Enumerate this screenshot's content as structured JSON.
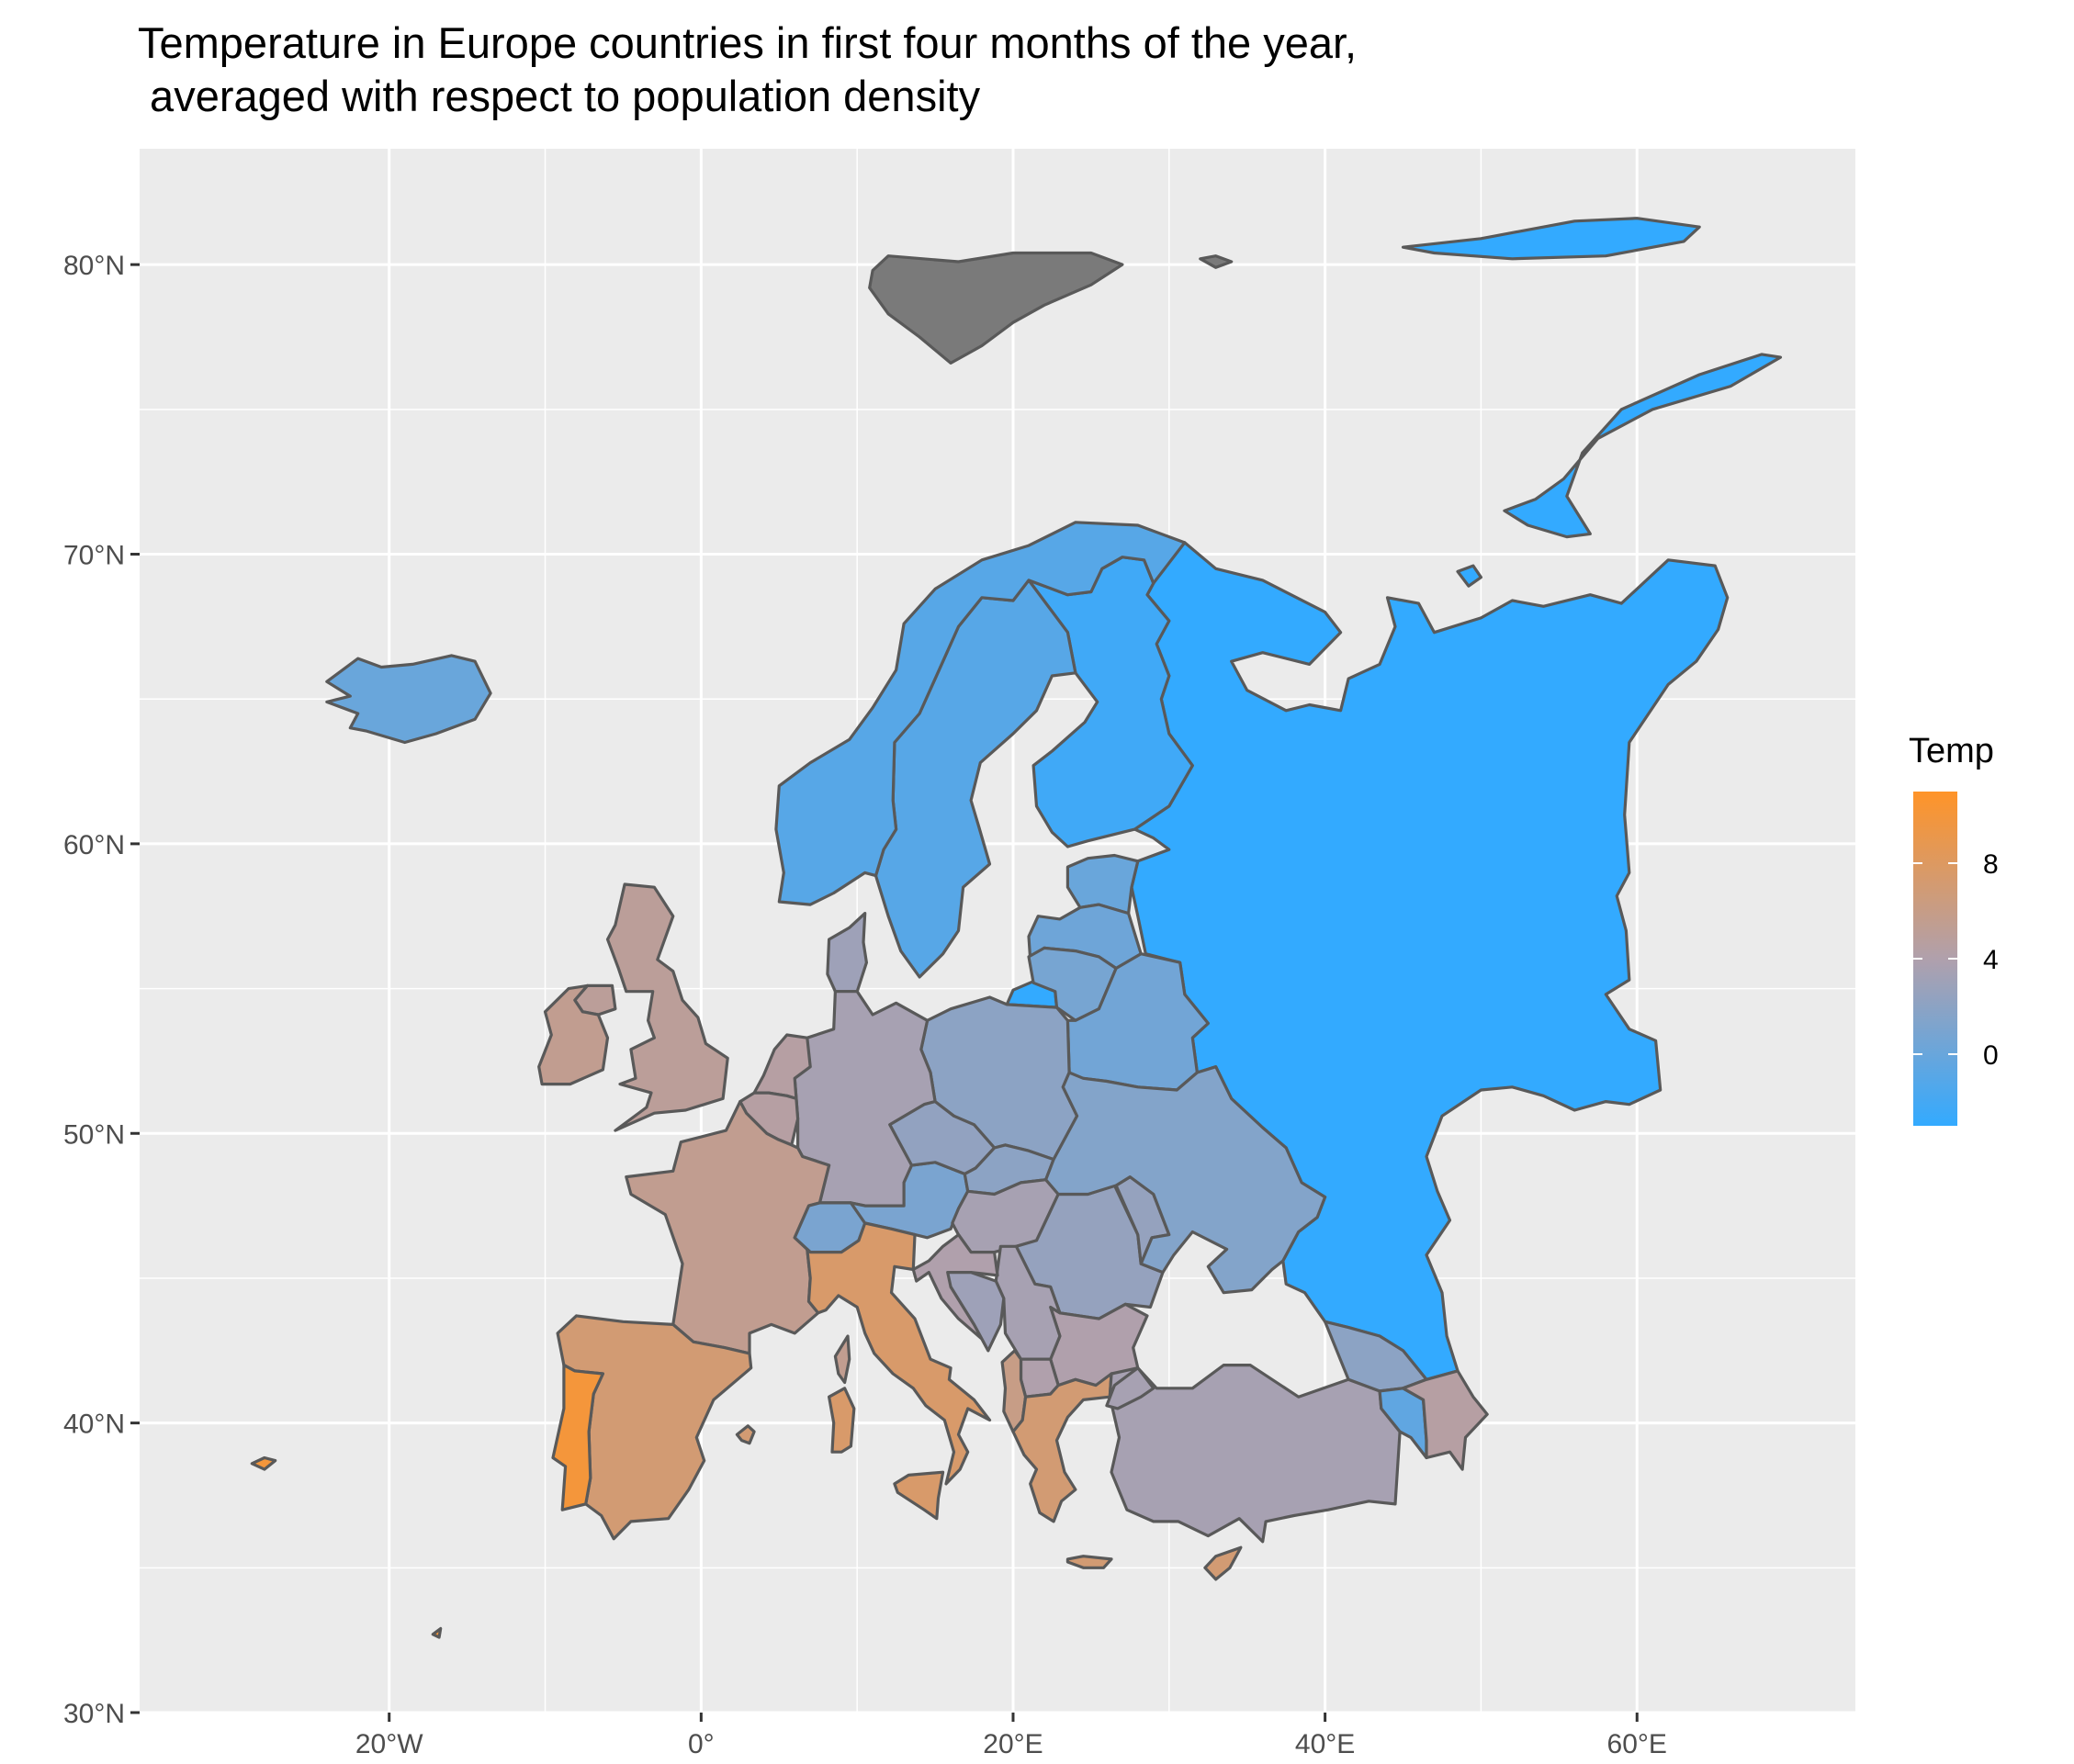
{
  "title_line1": "Temperature in Europe countries in first four months of the year,",
  "title_line2": " averaged with respect to population density",
  "axes": {
    "x_ticks": [
      {
        "value": -20,
        "label": "20°W"
      },
      {
        "value": 0,
        "label": "0°"
      },
      {
        "value": 20,
        "label": "20°E"
      },
      {
        "value": 40,
        "label": "40°E"
      },
      {
        "value": 60,
        "label": "60°E"
      }
    ],
    "y_ticks": [
      {
        "value": 30,
        "label": "30°N"
      },
      {
        "value": 40,
        "label": "40°N"
      },
      {
        "value": 50,
        "label": "50°N"
      },
      {
        "value": 60,
        "label": "60°N"
      },
      {
        "value": 70,
        "label": "70°N"
      },
      {
        "value": 80,
        "label": "80°N"
      }
    ],
    "xlim": [
      -36,
      74
    ],
    "ylim": [
      30,
      84
    ]
  },
  "legend": {
    "title": "Temp",
    "labels": [
      "8",
      "4",
      "0"
    ],
    "label_values": [
      8,
      4,
      0
    ],
    "range": [
      -3,
      11
    ],
    "low_color": "#33aaff",
    "mid_color": "#b0a0ac",
    "high_color": "#ff9428"
  },
  "colors": {
    "panel_bg": "#ebebeb",
    "grid": "#ffffff",
    "missing": "#7a7a7a",
    "border": "#595959"
  },
  "chart_data": {
    "type": "choropleth",
    "regions": [
      {
        "name": "Russia",
        "value": -3
      },
      {
        "name": "Finland",
        "value": -2.3
      },
      {
        "name": "Sweden",
        "value": -1
      },
      {
        "name": "Norway",
        "value": -1
      },
      {
        "name": "Iceland",
        "value": 0
      },
      {
        "name": "Estonia",
        "value": 0
      },
      {
        "name": "Latvia",
        "value": 0.3
      },
      {
        "name": "Lithuania",
        "value": 0.8
      },
      {
        "name": "Belarus",
        "value": 0.5
      },
      {
        "name": "Ukraine",
        "value": 1.5
      },
      {
        "name": "Poland",
        "value": 2
      },
      {
        "name": "Germany",
        "value": 3.5
      },
      {
        "name": "Czechia",
        "value": 2.3
      },
      {
        "name": "Slovakia",
        "value": 2
      },
      {
        "name": "Austria",
        "value": 1
      },
      {
        "name": "Switzerland",
        "value": 1
      },
      {
        "name": "Hungary",
        "value": 3.5
      },
      {
        "name": "Romania",
        "value": 2.5
      },
      {
        "name": "Moldova",
        "value": 2.5
      },
      {
        "name": "Bulgaria",
        "value": 4
      },
      {
        "name": "Serbia",
        "value": 3.5
      },
      {
        "name": "Croatia",
        "value": 4
      },
      {
        "name": "Bosnia and Herzegovina",
        "value": 3
      },
      {
        "name": "Greece",
        "value": 7
      },
      {
        "name": "North Macedonia",
        "value": 4
      },
      {
        "name": "Albania",
        "value": 6
      },
      {
        "name": "Italy",
        "value": 7.5
      },
      {
        "name": "France",
        "value": 5.5
      },
      {
        "name": "Spain",
        "value": 7
      },
      {
        "name": "Portugal",
        "value": 10
      },
      {
        "name": "United Kingdom",
        "value": 5
      },
      {
        "name": "Ireland",
        "value": 5.5
      },
      {
        "name": "Belgium",
        "value": 4.5
      },
      {
        "name": "Netherlands",
        "value": 4.5
      },
      {
        "name": "Denmark",
        "value": 3
      },
      {
        "name": "Turkey",
        "value": 3.5
      },
      {
        "name": "Georgia",
        "value": 2
      },
      {
        "name": "Azerbaijan",
        "value": 4.5
      },
      {
        "name": "Armenia",
        "value": -0.5
      },
      {
        "name": "Svalbard",
        "value": null
      },
      {
        "name": "Franz Josef Land",
        "value": -3
      },
      {
        "name": "Kaliningrad",
        "value": -3
      },
      {
        "name": "Cyprus",
        "value": 7
      },
      {
        "name": "Sardinia",
        "value": 7.5
      },
      {
        "name": "Corsica",
        "value": 5.5
      },
      {
        "name": "Sicily",
        "value": 7.5
      },
      {
        "name": "Crete",
        "value": 7
      },
      {
        "name": "Balearic Islands",
        "value": 7
      },
      {
        "name": "Azores",
        "value": 10
      },
      {
        "name": "Madeira",
        "value": 10
      }
    ]
  }
}
